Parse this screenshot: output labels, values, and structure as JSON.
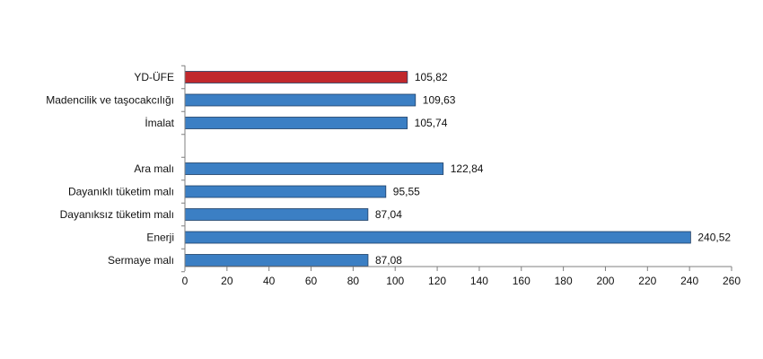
{
  "chart_data": {
    "type": "bar",
    "orientation": "horizontal",
    "categories": [
      "YD-ÜFE",
      "Madencilik ve taşocakcılığı",
      "İmalat",
      "",
      "Ara malı",
      "Dayanıklı tüketim malı",
      "Dayanıksız tüketim malı",
      "Enerji",
      "Sermaye malı"
    ],
    "values": [
      105.82,
      109.63,
      105.74,
      null,
      122.84,
      95.55,
      87.04,
      240.52,
      87.08
    ],
    "value_labels": [
      "105,82",
      "109,63",
      "105,74",
      "",
      "122,84",
      "95,55",
      "87,04",
      "240,52",
      "87,08"
    ],
    "bar_colors": [
      "#c0282d",
      "#3b7fc4",
      "#3b7fc4",
      "",
      "#3b7fc4",
      "#3b7fc4",
      "#3b7fc4",
      "#3b7fc4",
      "#3b7fc4"
    ],
    "xlim": [
      0,
      260
    ],
    "xticks": [
      0,
      20,
      40,
      60,
      80,
      100,
      120,
      140,
      160,
      180,
      200,
      220,
      240,
      260
    ],
    "grid": false,
    "title": "",
    "xlabel": "",
    "ylabel": ""
  }
}
